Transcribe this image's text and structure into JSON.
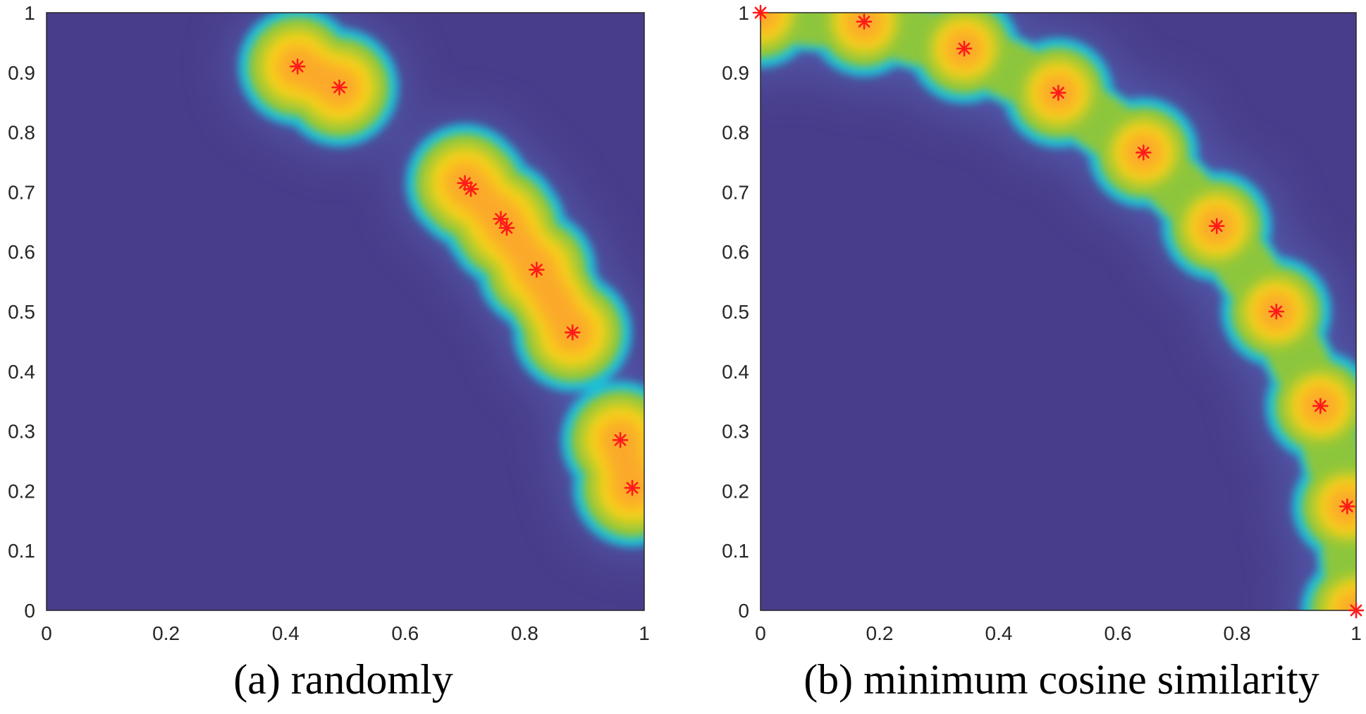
{
  "colors": {
    "background": "#483D8B",
    "low": "#4B3A94",
    "cyan": "#1FBFD8",
    "green": "#8CC63E",
    "yellow": "#F8D313",
    "orange": "#FBA92A",
    "marker": "#FF1A1A"
  },
  "chart_data": [
    {
      "type": "heatmap",
      "panel": "a",
      "title": "(a) randomly",
      "xlabel": "",
      "ylabel": "",
      "xlim": [
        0,
        1
      ],
      "ylim": [
        0,
        1
      ],
      "xticks": [
        0,
        0.2,
        0.4,
        0.6,
        0.8,
        1
      ],
      "xtick_labels": [
        "0",
        "0.2",
        "0.4",
        "0.6",
        "0.8",
        "1"
      ],
      "yticks": [
        0,
        0.1,
        0.2,
        0.3,
        0.4,
        0.5,
        0.6,
        0.7,
        0.8,
        0.9,
        1
      ],
      "ytick_labels": [
        "0",
        "0.1",
        "0.2",
        "0.3",
        "0.4",
        "0.5",
        "0.6",
        "0.7",
        "0.8",
        "0.9",
        "1"
      ],
      "grid": false,
      "marker": "red-asterisk",
      "points": [
        {
          "x": 0.42,
          "y": 0.91
        },
        {
          "x": 0.49,
          "y": 0.875
        },
        {
          "x": 0.7,
          "y": 0.715
        },
        {
          "x": 0.71,
          "y": 0.705
        },
        {
          "x": 0.76,
          "y": 0.655
        },
        {
          "x": 0.77,
          "y": 0.64
        },
        {
          "x": 0.82,
          "y": 0.57
        },
        {
          "x": 0.88,
          "y": 0.465
        },
        {
          "x": 0.96,
          "y": 0.285
        },
        {
          "x": 0.98,
          "y": 0.205
        }
      ]
    },
    {
      "type": "heatmap",
      "panel": "b",
      "title": "(b) minimum cosine similarity",
      "xlabel": "",
      "ylabel": "",
      "xlim": [
        0,
        1
      ],
      "ylim": [
        0,
        1
      ],
      "xticks": [
        0,
        0.2,
        0.4,
        0.6,
        0.8,
        1
      ],
      "xtick_labels": [
        "0",
        "0.2",
        "0.4",
        "0.6",
        "0.8",
        "1"
      ],
      "yticks": [
        0,
        0.1,
        0.2,
        0.3,
        0.4,
        0.5,
        0.6,
        0.7,
        0.8,
        0.9,
        1
      ],
      "ytick_labels": [
        "0",
        "0.1",
        "0.2",
        "0.3",
        "0.4",
        "0.5",
        "0.6",
        "0.7",
        "0.8",
        "0.9",
        "1"
      ],
      "grid": false,
      "marker": "red-asterisk",
      "points": [
        {
          "x": 0.0,
          "y": 1.0
        },
        {
          "x": 0.174,
          "y": 0.985
        },
        {
          "x": 0.342,
          "y": 0.94
        },
        {
          "x": 0.5,
          "y": 0.866
        },
        {
          "x": 0.643,
          "y": 0.766
        },
        {
          "x": 0.766,
          "y": 0.643
        },
        {
          "x": 0.866,
          "y": 0.5
        },
        {
          "x": 0.94,
          "y": 0.342
        },
        {
          "x": 0.985,
          "y": 0.174
        },
        {
          "x": 1.0,
          "y": 0.0
        }
      ]
    }
  ]
}
